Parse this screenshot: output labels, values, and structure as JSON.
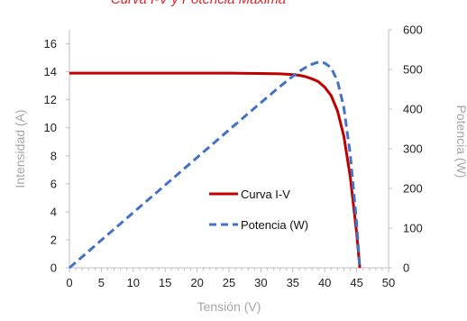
{
  "chart_data": {
    "type": "line",
    "title": "Curva I-V y Potencia Máxima",
    "xlabel": "Tensión (V)",
    "ylabel": "Intensidad (A)",
    "y2label": "Potencia (W)",
    "xlim": [
      0,
      50
    ],
    "ylim": [
      0,
      17
    ],
    "y2lim": [
      0,
      600
    ],
    "xticks": [
      "0",
      "5",
      "10",
      "15",
      "20",
      "25",
      "30",
      "35",
      "40",
      "45",
      "50"
    ],
    "yticks": [
      "0",
      "2",
      "4",
      "6",
      "8",
      "10",
      "12",
      "14",
      "16"
    ],
    "y2ticks": [
      "0",
      "100",
      "200",
      "300",
      "400",
      "500",
      "600"
    ],
    "grid": false,
    "legend_position": "center-right",
    "series": [
      {
        "name": "Curva I-V",
        "axis": "left",
        "color": "#c00000",
        "style": "solid",
        "x": [
          0,
          5,
          10,
          15,
          20,
          25,
          30,
          33,
          35,
          36,
          37,
          38,
          39,
          40,
          41,
          42,
          43,
          44,
          45,
          45.5
        ],
        "y": [
          13.9,
          13.9,
          13.9,
          13.9,
          13.9,
          13.9,
          13.88,
          13.85,
          13.8,
          13.75,
          13.65,
          13.5,
          13.3,
          12.9,
          12.3,
          11.2,
          9.4,
          6.5,
          2.5,
          0
        ]
      },
      {
        "name": "Potencia (W)",
        "axis": "right",
        "color": "#4472c4",
        "style": "dashed",
        "x": [
          0,
          5,
          10,
          15,
          20,
          25,
          30,
          33,
          35,
          36,
          37,
          38,
          39,
          40,
          41,
          42,
          43,
          44,
          45,
          45.5
        ],
        "y": [
          0,
          69.5,
          139,
          208.5,
          278,
          347.5,
          416.4,
          457.1,
          483,
          495,
          505,
          513,
          518.7,
          516,
          504.3,
          470.4,
          404.2,
          286,
          112.5,
          0
        ]
      }
    ]
  }
}
